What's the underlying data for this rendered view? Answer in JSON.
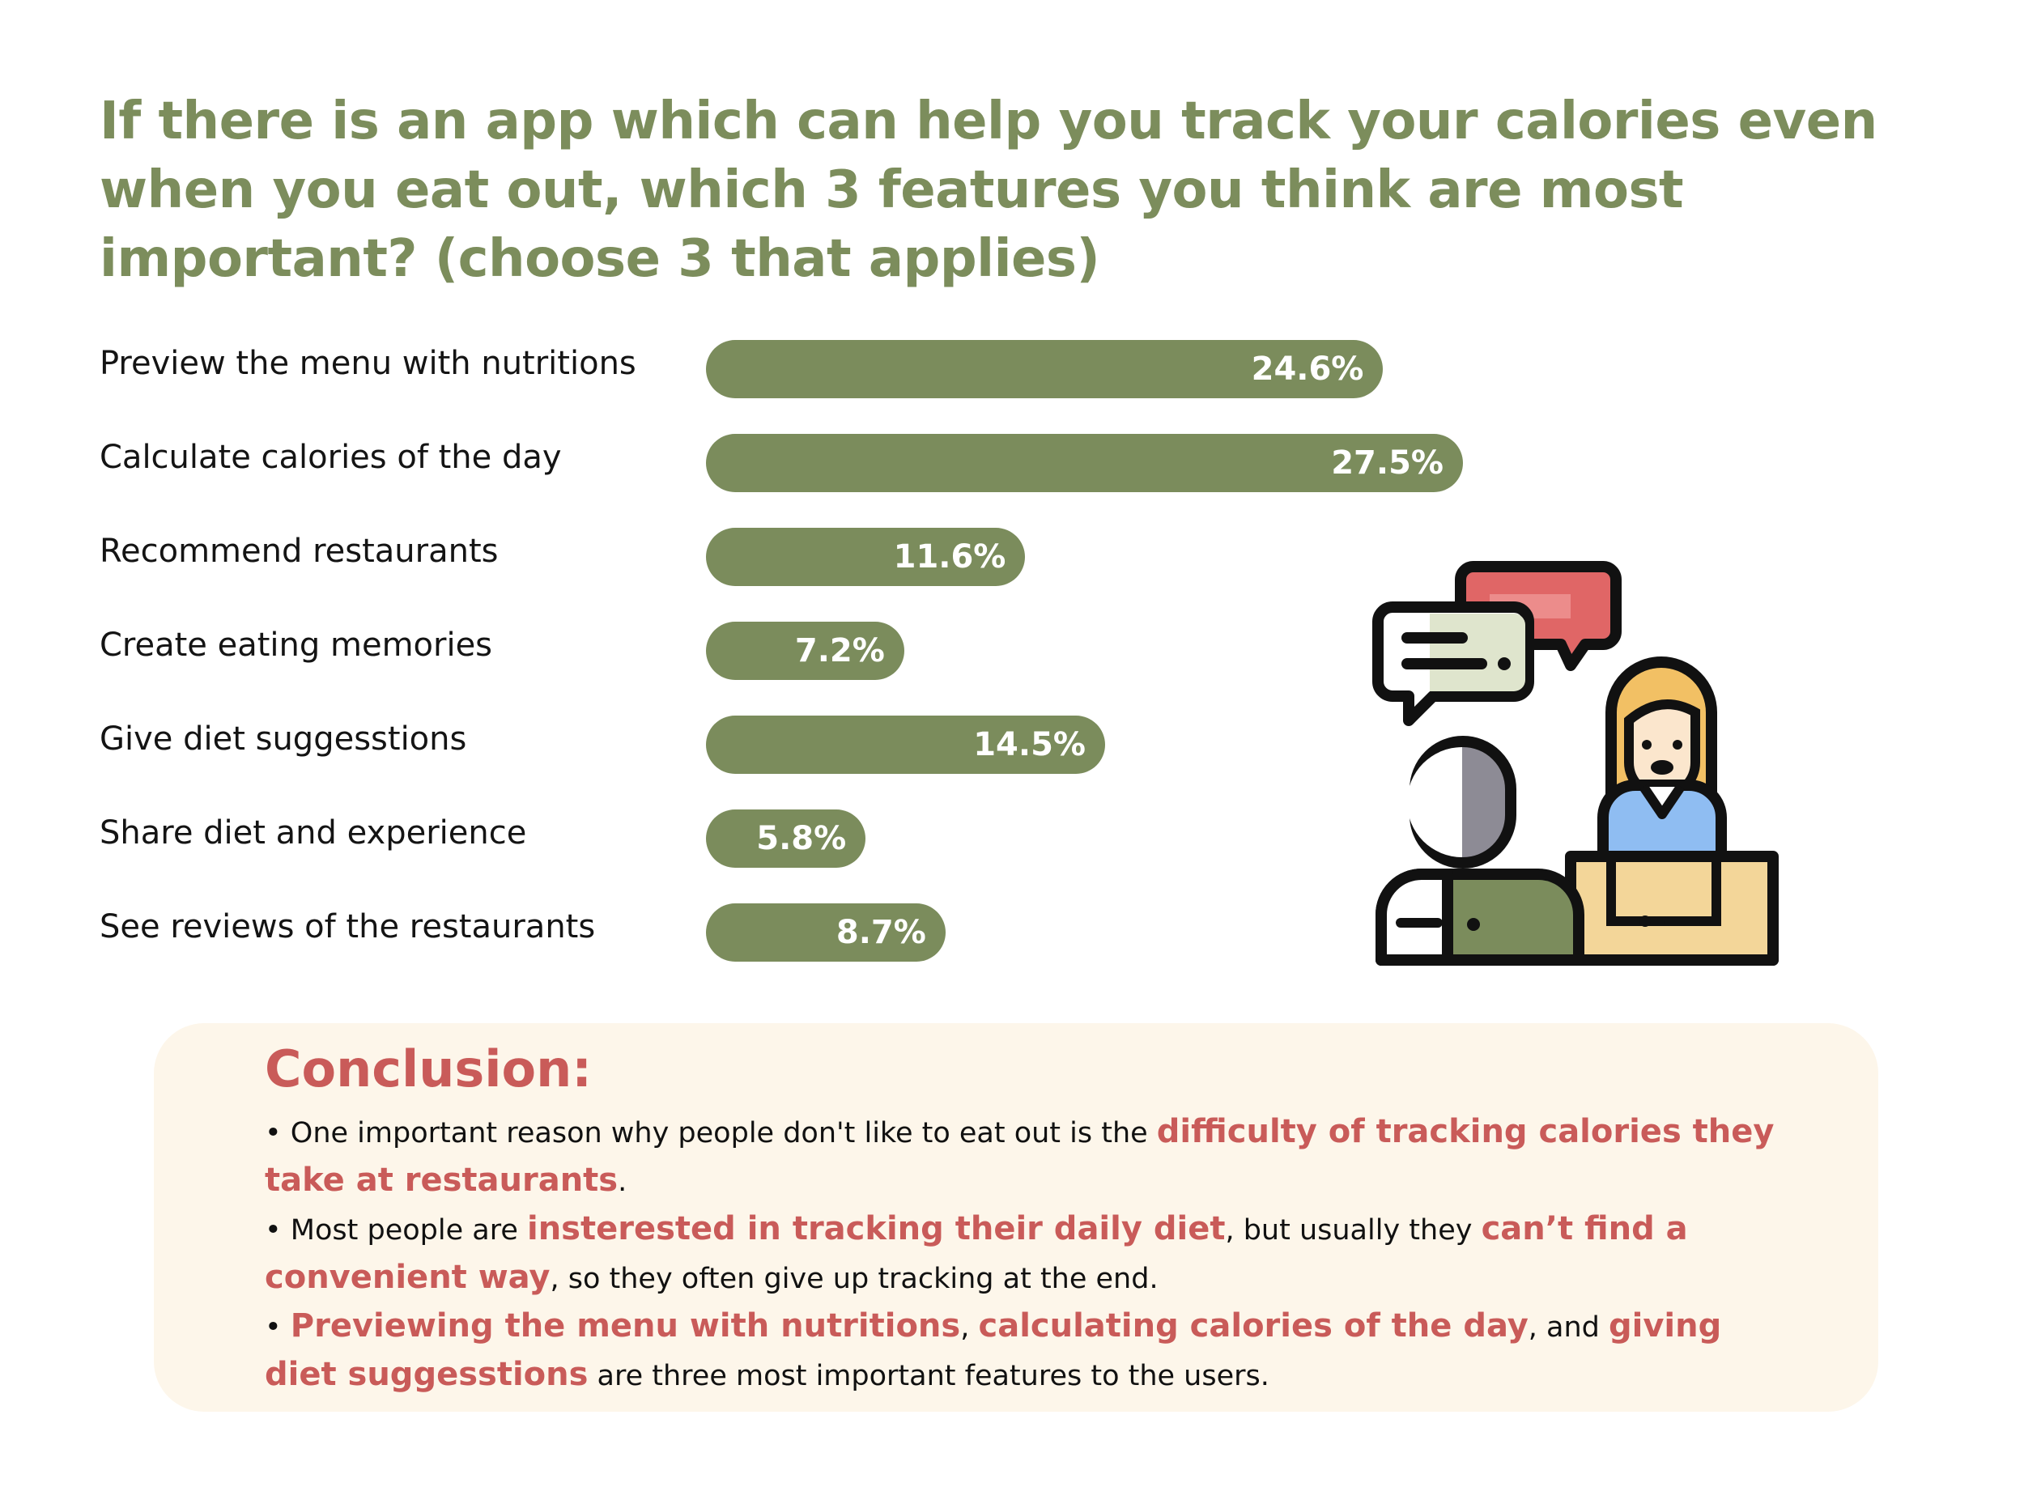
{
  "title": "If there is an app which can help you track your calories even when you eat out, which 3 features you think are most important? (choose 3 that applies)",
  "colors": {
    "bar": "#7b8c5c",
    "title": "#7c8d5c",
    "highlight": "#c95b59",
    "panel": "#fdf6ea"
  },
  "chart_data": {
    "type": "bar",
    "orientation": "horizontal",
    "categories": [
      "Preview the menu with nutritions",
      "Calculate calories of the day",
      "Recommend restaurants",
      "Create eating memories",
      "Give diet suggesstions",
      "Share diet and experience",
      "See reviews of the restaurants"
    ],
    "values": [
      24.6,
      27.5,
      11.6,
      7.2,
      14.5,
      5.8,
      8.7
    ],
    "value_labels": [
      "24.6%",
      "27.5%",
      "11.6%",
      "7.2%",
      "14.5%",
      "5.8%",
      "8.7%"
    ],
    "unit": "%",
    "grid": false,
    "legend": "none"
  },
  "illustration": {
    "icon": "conversation-people-icon"
  },
  "conclusion": {
    "heading": "Conclusion:",
    "bullet": "•",
    "p1": {
      "t1": "One important reason why people don't like to eat out is the ",
      "h1": "difficulty of tracking calories they take at restaurants",
      "t2": "."
    },
    "p2": {
      "t1": "Most people are ",
      "h1": "insterested in tracking their daily diet",
      "t2": ", but usually they ",
      "h2": "can’t find a convenient way",
      "t3": ", so they often give up tracking at the end."
    },
    "p3": {
      "h1": "Previewing the menu with nutritions",
      "t1": ", ",
      "h2": "calculating calories of the day",
      "t2": ", and ",
      "h3": "giving diet suggesstions",
      "t3": " are three most important features to the users."
    }
  }
}
